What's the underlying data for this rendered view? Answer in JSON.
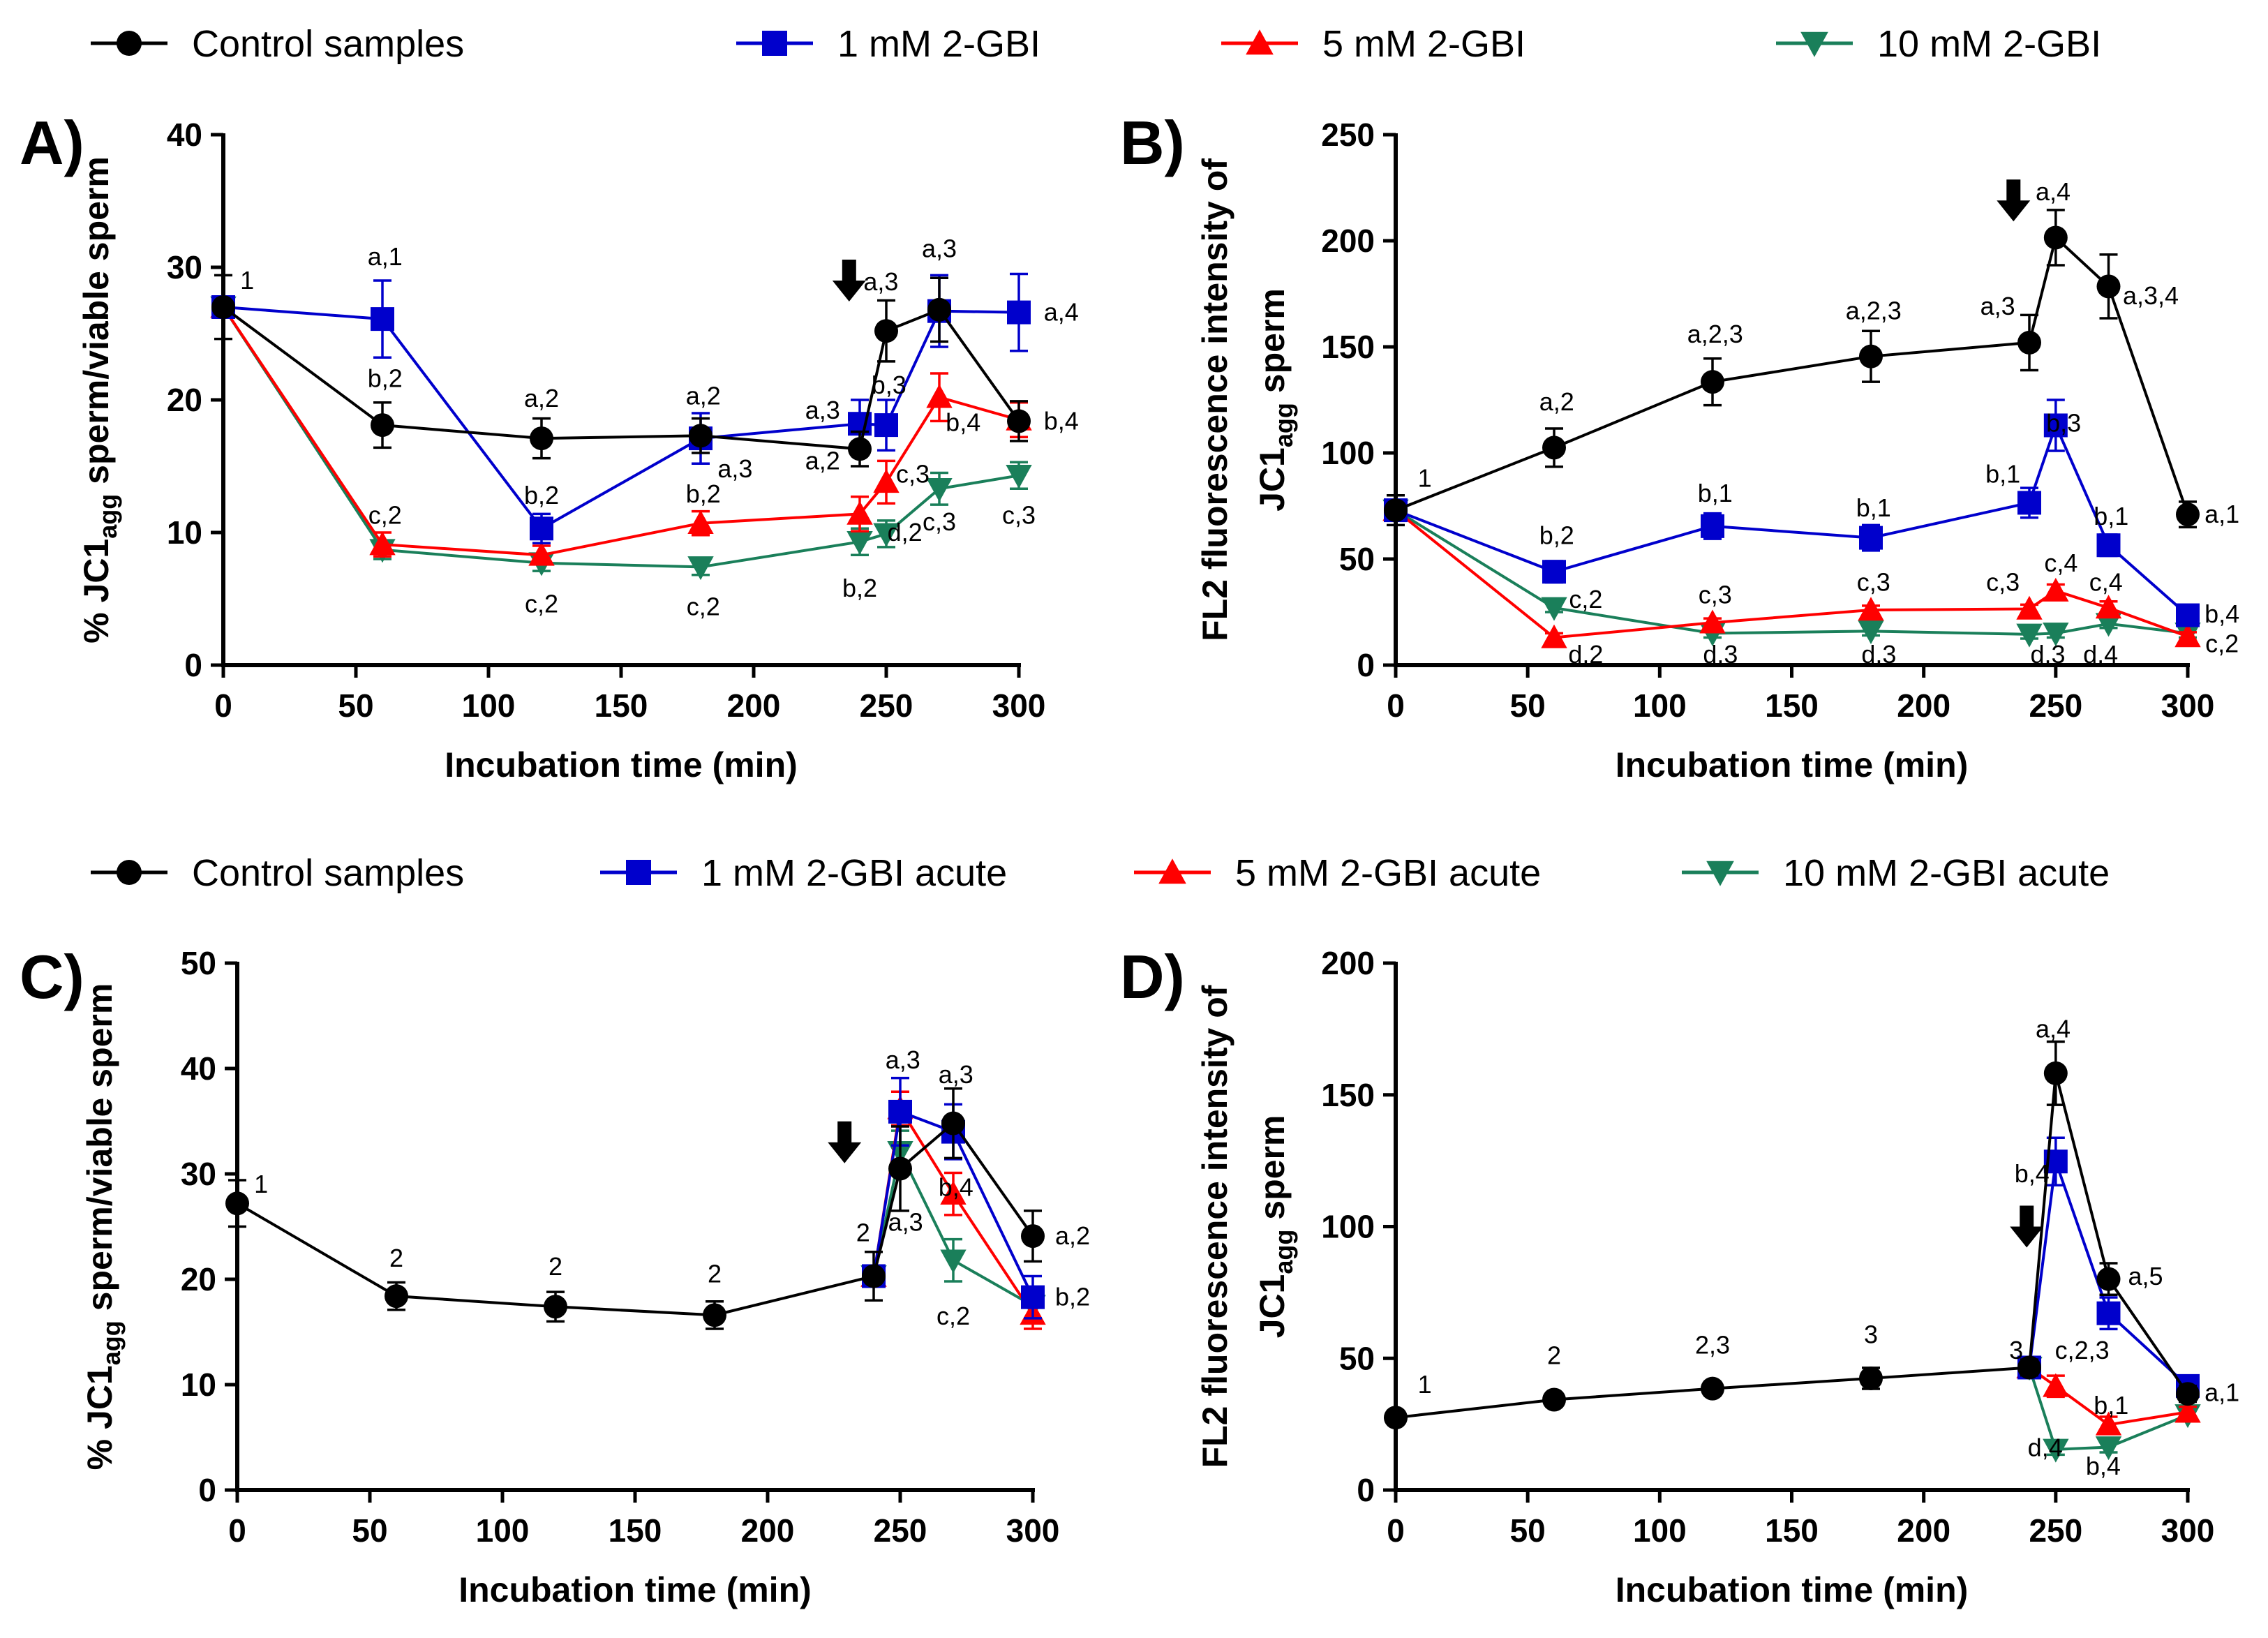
{
  "colors": {
    "control": "#000000",
    "low": "#0000cc",
    "mid": "#ff0000",
    "high": "#1a7f5a"
  },
  "legends": [
    {
      "entries": [
        {
          "key": "control",
          "label": "Control samples",
          "marker": "circle"
        },
        {
          "key": "low",
          "label": "1 mM 2-GBI",
          "marker": "square"
        },
        {
          "key": "mid",
          "label": "5 mM 2-GBI",
          "marker": "triangle-up"
        },
        {
          "key": "high",
          "label": "10 mM 2-GBI",
          "marker": "triangle-down"
        }
      ]
    },
    {
      "entries": [
        {
          "key": "control",
          "label": "Control samples",
          "marker": "circle"
        },
        {
          "key": "low",
          "label": "1 mM 2-GBI acute",
          "marker": "square"
        },
        {
          "key": "mid",
          "label": "5 mM 2-GBI acute",
          "marker": "triangle-up"
        },
        {
          "key": "high",
          "label": "10 mM 2-GBI acute",
          "marker": "triangle-down"
        }
      ]
    }
  ],
  "chart_data": [
    {
      "panel": "A)",
      "type": "line",
      "ylabel": "% JC1agg sperm/viable sperm",
      "ylabel_main": "% JC1",
      "ylabel_sub": "agg",
      "ylabel_rest": " sperm/viable sperm",
      "xlabel": "Incubation time (min)",
      "xlim": [
        0,
        300
      ],
      "ylim": [
        0,
        40
      ],
      "xticks": [
        0,
        50,
        100,
        150,
        200,
        250,
        300
      ],
      "yticks": [
        0,
        10,
        20,
        30,
        40
      ],
      "arrow_at": [
        236,
        29
      ],
      "series": [
        {
          "key": "control",
          "name": "Control samples",
          "marker": "circle",
          "x": [
            0,
            60,
            120,
            180,
            240,
            250,
            270,
            300
          ],
          "y": [
            27,
            18.1,
            17.1,
            17.3,
            16.3,
            25.2,
            26.8,
            18.4
          ],
          "err": [
            2.4,
            1.7,
            1.5,
            1.3,
            1.3,
            2.3,
            2.4,
            1.5
          ]
        },
        {
          "key": "low",
          "name": "1 mM 2-GBI",
          "marker": "square",
          "x": [
            0,
            60,
            120,
            180,
            240,
            250,
            270,
            300
          ],
          "y": [
            27,
            26.1,
            10.3,
            17.1,
            18.2,
            18.1,
            26.7,
            26.6
          ],
          "err": [
            0,
            2.9,
            1.1,
            1.9,
            1.8,
            1.9,
            2.7,
            2.9
          ]
        },
        {
          "key": "mid",
          "name": "5 mM 2-GBI",
          "marker": "triangle-up",
          "x": [
            0,
            60,
            120,
            180,
            240,
            250,
            270,
            300
          ],
          "y": [
            27,
            9.1,
            8.3,
            10.7,
            11.4,
            13.8,
            20.2,
            18.5
          ],
          "err": [
            0,
            0.9,
            0.7,
            0.9,
            1.3,
            1.6,
            1.8,
            1.3
          ]
        },
        {
          "key": "high",
          "name": "10 mM 2-GBI",
          "marker": "triangle-down",
          "x": [
            0,
            60,
            120,
            180,
            240,
            250,
            270,
            300
          ],
          "y": [
            27,
            8.7,
            7.7,
            7.4,
            9.3,
            9.9,
            13.3,
            14.3
          ],
          "err": [
            0,
            0.7,
            0.6,
            0.6,
            1.0,
            1.0,
            1.2,
            1.0
          ]
        }
      ],
      "annotations": [
        {
          "text": "1",
          "x": 9,
          "y": 29
        },
        {
          "text": "a,1",
          "x": 61,
          "y": 30.8
        },
        {
          "text": "b,2",
          "x": 61,
          "y": 21.6
        },
        {
          "text": "c,2",
          "x": 61,
          "y": 11.3
        },
        {
          "text": "a,2",
          "x": 120,
          "y": 20.1
        },
        {
          "text": "b,2",
          "x": 120,
          "y": 12.8
        },
        {
          "text": "c,2",
          "x": 120,
          "y": 4.6
        },
        {
          "text": "a,2",
          "x": 181,
          "y": 20.3
        },
        {
          "text": "b,2",
          "x": 181,
          "y": 12.9
        },
        {
          "text": "c,2",
          "x": 181,
          "y": 4.4
        },
        {
          "text": "a,3",
          "x": 226,
          "y": 19.2
        },
        {
          "text": "a,2",
          "x": 226,
          "y": 15.4
        },
        {
          "text": "b,2",
          "x": 240,
          "y": 5.8
        },
        {
          "text": "a,3",
          "x": 248,
          "y": 28.9
        },
        {
          "text": "b,3",
          "x": 251,
          "y": 21.1
        },
        {
          "text": "c,3",
          "x": 260,
          "y": 14.4
        },
        {
          "text": "d,2",
          "x": 257,
          "y": 10
        },
        {
          "text": "a,3",
          "x": 270,
          "y": 31.4
        },
        {
          "text": "b,4",
          "x": 279,
          "y": 18.3
        },
        {
          "text": "c,3",
          "x": 270,
          "y": 10.8
        },
        {
          "text": "a,3",
          "x": 193,
          "y": 14.8
        },
        {
          "text": "a,4",
          "x": 316,
          "y": 26.6
        },
        {
          "text": "b,4",
          "x": 316,
          "y": 18.4
        },
        {
          "text": "c,3",
          "x": 300,
          "y": 11.3
        }
      ]
    },
    {
      "panel": "B)",
      "type": "line",
      "ylabel_line1": "FL2 fluorescence intensity of",
      "ylabel_main": "JC1",
      "ylabel_sub": "agg",
      "ylabel_rest": " sperm",
      "xlabel": "Incubation time (min)",
      "xlim": [
        0,
        300
      ],
      "ylim": [
        0,
        250
      ],
      "xticks": [
        0,
        50,
        100,
        150,
        200,
        250,
        300
      ],
      "yticks": [
        0,
        50,
        100,
        150,
        200,
        250
      ],
      "arrow_at": [
        234,
        219
      ],
      "series": [
        {
          "key": "control",
          "name": "Control samples",
          "marker": "circle",
          "x": [
            0,
            60,
            120,
            180,
            240,
            250,
            270,
            300
          ],
          "y": [
            73,
            102.5,
            133.5,
            145.5,
            152,
            201.5,
            178.5,
            71
          ],
          "err": [
            7,
            9,
            11,
            12,
            13,
            13,
            15,
            6
          ]
        },
        {
          "key": "low",
          "name": "1 mM 2-GBI",
          "marker": "square",
          "x": [
            0,
            60,
            120,
            180,
            240,
            250,
            270,
            300
          ],
          "y": [
            73,
            44,
            65.5,
            60,
            76.5,
            113,
            56.5,
            23.5
          ],
          "err": [
            0,
            5,
            6,
            6,
            7,
            12,
            5,
            3
          ]
        },
        {
          "key": "mid",
          "name": "5 mM 2-GBI",
          "marker": "triangle-up",
          "x": [
            0,
            60,
            120,
            180,
            240,
            250,
            270,
            300
          ],
          "y": [
            73,
            13,
            20,
            26,
            26.5,
            35,
            27,
            13.5
          ],
          "err": [
            0,
            2,
            2,
            2,
            2,
            3,
            3,
            2
          ]
        },
        {
          "key": "high",
          "name": "10 mM 2-GBI",
          "marker": "triangle-down",
          "x": [
            0,
            60,
            120,
            180,
            240,
            250,
            270,
            300
          ],
          "y": [
            73,
            27,
            15,
            16,
            14.5,
            15,
            19.5,
            15
          ],
          "err": [
            0,
            2,
            2,
            2,
            2,
            2,
            2,
            2
          ]
        }
      ],
      "annotations": [
        {
          "text": "1",
          "x": 11,
          "y": 88
        },
        {
          "text": "a,2",
          "x": 61,
          "y": 124
        },
        {
          "text": "b,2",
          "x": 61,
          "y": 61
        },
        {
          "text": "c,2",
          "x": 72,
          "y": 31
        },
        {
          "text": "d,2",
          "x": 72,
          "y": 5
        },
        {
          "text": "a,2,3",
          "x": 121,
          "y": 156
        },
        {
          "text": "b,1",
          "x": 121,
          "y": 81
        },
        {
          "text": "c,3",
          "x": 121,
          "y": 33
        },
        {
          "text": "d,3",
          "x": 123,
          "y": 5
        },
        {
          "text": "a,2,3",
          "x": 181,
          "y": 167
        },
        {
          "text": "b,1",
          "x": 181,
          "y": 74
        },
        {
          "text": "c,3",
          "x": 181,
          "y": 39
        },
        {
          "text": "d,3",
          "x": 183,
          "y": 5
        },
        {
          "text": "a,3",
          "x": 228,
          "y": 169
        },
        {
          "text": "b,1",
          "x": 230,
          "y": 90
        },
        {
          "text": "c,3",
          "x": 230,
          "y": 39
        },
        {
          "text": "d,3",
          "x": 247,
          "y": 5
        },
        {
          "text": "a,4",
          "x": 249,
          "y": 223
        },
        {
          "text": "b,3",
          "x": 253,
          "y": 114
        },
        {
          "text": "c,4",
          "x": 252,
          "y": 48
        },
        {
          "text": "b,1",
          "x": 271,
          "y": 70
        },
        {
          "text": "c,4",
          "x": 269,
          "y": 39
        },
        {
          "text": "d,4",
          "x": 267,
          "y": 5
        },
        {
          "text": "a,3,4",
          "x": 286,
          "y": 174
        },
        {
          "text": "a,1",
          "x": 313,
          "y": 71
        },
        {
          "text": "b,4",
          "x": 313,
          "y": 24
        },
        {
          "text": "c,2",
          "x": 313,
          "y": 10
        }
      ]
    },
    {
      "panel": "C)",
      "type": "line",
      "ylabel": "% JC1agg sperm/viable sperm",
      "ylabel_main": "% JC1",
      "ylabel_sub": "agg",
      "ylabel_rest": " sperm/viable sperm",
      "xlabel": "Incubation time (min)",
      "xlim": [
        0,
        300
      ],
      "ylim": [
        0,
        50
      ],
      "xticks": [
        0,
        50,
        100,
        150,
        200,
        250,
        300
      ],
      "yticks": [
        0,
        10,
        20,
        30,
        40,
        50
      ],
      "arrow_at": [
        229,
        33
      ],
      "series": [
        {
          "key": "control",
          "name": "Control samples",
          "marker": "circle",
          "x": [
            0,
            60,
            120,
            180,
            240,
            250,
            270,
            300
          ],
          "y": [
            27.2,
            18.4,
            17.4,
            16.6,
            20.3,
            30.5,
            34.8,
            24.1
          ],
          "err": [
            2.2,
            1.3,
            1.4,
            1.3,
            2.3,
            4.0,
            3.3,
            2.4
          ]
        },
        {
          "key": "low",
          "name": "1 mM 2-GBI acute",
          "marker": "square",
          "x": [
            240,
            250,
            270,
            300
          ],
          "y": [
            20.3,
            35.9,
            34.0,
            18.3
          ],
          "err": [
            0,
            3.2,
            2.6,
            2.0
          ]
        },
        {
          "key": "mid",
          "name": "5 mM 2-GBI acute",
          "marker": "triangle-up",
          "x": [
            240,
            250,
            270,
            300
          ],
          "y": [
            20.3,
            36.2,
            28.1,
            16.7
          ],
          "err": [
            0,
            1.6,
            2.0,
            1.4
          ]
        },
        {
          "key": "high",
          "name": "10 mM 2-GBI acute",
          "marker": "triangle-down",
          "x": [
            240,
            250,
            270,
            300
          ],
          "y": [
            20.3,
            32.1,
            21.8,
            17.5
          ],
          "err": [
            0,
            2.0,
            2.0,
            1.6
          ]
        }
      ],
      "annotations": [
        {
          "text": "1",
          "x": 9,
          "y": 29
        },
        {
          "text": "2",
          "x": 60,
          "y": 22
        },
        {
          "text": "2",
          "x": 120,
          "y": 21.2
        },
        {
          "text": "2",
          "x": 180,
          "y": 20.5
        },
        {
          "text": "2",
          "x": 236,
          "y": 24.4
        },
        {
          "text": "a,3",
          "x": 251,
          "y": 40.8
        },
        {
          "text": "a,3",
          "x": 252,
          "y": 25.4
        },
        {
          "text": "a,3",
          "x": 271,
          "y": 39.4
        },
        {
          "text": "b,4",
          "x": 271,
          "y": 28.7
        },
        {
          "text": "c,2",
          "x": 270,
          "y": 16.5
        },
        {
          "text": "a,2",
          "x": 315,
          "y": 24.1
        },
        {
          "text": "b,2",
          "x": 315,
          "y": 18.3
        }
      ]
    },
    {
      "panel": "D)",
      "type": "line",
      "ylabel_line1": "FL2 fluorescence intensity of",
      "ylabel_main": "JC1",
      "ylabel_sub": "agg",
      "ylabel_rest": " sperm",
      "xlabel": "Incubation time (min)",
      "xlim": [
        0,
        300
      ],
      "ylim": [
        0,
        200
      ],
      "xticks": [
        0,
        50,
        100,
        150,
        200,
        250,
        300
      ],
      "yticks": [
        0,
        50,
        100,
        150,
        200
      ],
      "arrow_at": [
        239,
        100
      ],
      "series": [
        {
          "key": "control",
          "name": "Control samples",
          "marker": "circle",
          "x": [
            0,
            60,
            120,
            180,
            240,
            250,
            270,
            300
          ],
          "y": [
            27.5,
            34.3,
            38.5,
            42.4,
            46.5,
            158.2,
            80.1,
            36.5
          ],
          "err": [
            2,
            2.5,
            2.5,
            4,
            3,
            12,
            6,
            3
          ]
        },
        {
          "key": "low",
          "name": "1 mM 2-GBI acute",
          "marker": "square",
          "x": [
            240,
            250,
            270,
            300
          ],
          "y": [
            46.5,
            124.7,
            67.1,
            39.5
          ],
          "err": [
            0,
            9,
            6,
            3
          ]
        },
        {
          "key": "mid",
          "name": "5 mM 2-GBI acute",
          "marker": "triangle-up",
          "x": [
            240,
            250,
            270,
            300
          ],
          "y": [
            46.5,
            39.4,
            24.8,
            29.6
          ],
          "err": [
            0,
            4,
            3,
            2
          ]
        },
        {
          "key": "high",
          "name": "10 mM 2-GBI acute",
          "marker": "triangle-down",
          "x": [
            240,
            250,
            270,
            300
          ],
          "y": [
            46.5,
            15.4,
            16.3,
            28.5
          ],
          "err": [
            0,
            2,
            2,
            2
          ]
        }
      ],
      "annotations": [
        {
          "text": "1",
          "x": 11,
          "y": 40
        },
        {
          "text": "2",
          "x": 60,
          "y": 51
        },
        {
          "text": "2,3",
          "x": 120,
          "y": 55
        },
        {
          "text": "3",
          "x": 180,
          "y": 59
        },
        {
          "text": "3",
          "x": 235,
          "y": 53
        },
        {
          "text": "a,4",
          "x": 249,
          "y": 175
        },
        {
          "text": "b,4",
          "x": 241,
          "y": 120
        },
        {
          "text": "c,2,3",
          "x": 260,
          "y": 53
        },
        {
          "text": "b,1",
          "x": 271,
          "y": 32
        },
        {
          "text": "d,4",
          "x": 246,
          "y": 16
        },
        {
          "text": "b,4",
          "x": 268,
          "y": 9
        },
        {
          "text": "a,5",
          "x": 284,
          "y": 81
        },
        {
          "text": "a,1",
          "x": 313,
          "y": 37
        }
      ]
    }
  ]
}
